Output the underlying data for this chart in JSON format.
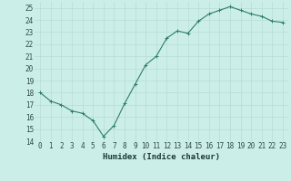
{
  "x": [
    0,
    1,
    2,
    3,
    4,
    5,
    6,
    7,
    8,
    9,
    10,
    11,
    12,
    13,
    14,
    15,
    16,
    17,
    18,
    19,
    20,
    21,
    22,
    23
  ],
  "y": [
    18,
    17.3,
    17.0,
    16.5,
    16.3,
    15.7,
    14.4,
    15.3,
    17.1,
    18.7,
    20.3,
    21.0,
    22.5,
    23.1,
    22.9,
    23.9,
    24.5,
    24.8,
    25.1,
    24.8,
    24.5,
    24.3,
    23.9,
    23.8
  ],
  "line_color": "#2e7d6e",
  "marker": "+",
  "marker_color": "#2e7d6e",
  "bg_color": "#cceee8",
  "grid_color": "#b5ddd4",
  "tick_label_color": "#2e4a44",
  "xlabel": "Humidex (Indice chaleur)",
  "xlabel_color": "#1a3a33",
  "xlim": [
    -0.5,
    23.5
  ],
  "ylim": [
    14,
    25.5
  ],
  "yticks": [
    14,
    15,
    16,
    17,
    18,
    19,
    20,
    21,
    22,
    23,
    24,
    25
  ],
  "xticks": [
    0,
    1,
    2,
    3,
    4,
    5,
    6,
    7,
    8,
    9,
    10,
    11,
    12,
    13,
    14,
    15,
    16,
    17,
    18,
    19,
    20,
    21,
    22,
    23
  ],
  "xtick_labels": [
    "0",
    "1",
    "2",
    "3",
    "4",
    "5",
    "6",
    "7",
    "8",
    "9",
    "10",
    "11",
    "12",
    "13",
    "14",
    "15",
    "16",
    "17",
    "18",
    "19",
    "20",
    "21",
    "22",
    "23"
  ],
  "font_size": 5.5,
  "xlabel_fontsize": 6.5,
  "linewidth": 0.8,
  "markersize": 2.5,
  "markeredgewidth": 0.7
}
